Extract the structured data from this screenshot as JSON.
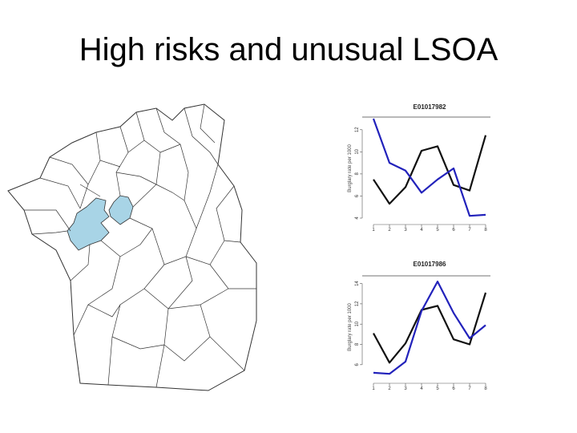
{
  "slide": {
    "title": "High risks and unusual LSOA"
  },
  "colors": {
    "highlight": "#a8d4e6",
    "boundary": "#333333",
    "series_black": "#111111",
    "series_blue": "#2222bb"
  },
  "chart_data": [
    {
      "type": "line",
      "title": "E01017982",
      "ylabel": "Burglary rate per 1000",
      "x": [
        1,
        2,
        3,
        4,
        5,
        6,
        7,
        8
      ],
      "xticks": [
        "1",
        "2",
        "3",
        "4",
        "5",
        "6",
        "7",
        "8"
      ],
      "yticks": [
        4,
        6,
        8,
        10,
        12
      ],
      "ylim": [
        4,
        13
      ],
      "series": [
        {
          "color": "#111111",
          "values": [
            7.5,
            5.3,
            6.8,
            10.1,
            10.5,
            7.0,
            6.5,
            11.5
          ]
        },
        {
          "color": "#2222bb",
          "values": [
            13.0,
            9.0,
            8.3,
            6.3,
            7.5,
            8.5,
            4.2,
            4.3
          ]
        }
      ]
    },
    {
      "type": "line",
      "title": "E01017986",
      "ylabel": "Burglary rate per 1000",
      "x": [
        1,
        2,
        3,
        4,
        5,
        6,
        7,
        8
      ],
      "xticks": [
        "1",
        "2",
        "3",
        "4",
        "5",
        "6",
        "7",
        "8"
      ],
      "yticks": [
        6,
        8,
        10,
        12,
        14
      ],
      "ylim": [
        4.8,
        14.6
      ],
      "series": [
        {
          "color": "#111111",
          "values": [
            9.1,
            6.2,
            8.1,
            11.4,
            11.8,
            8.5,
            8.0,
            13.1
          ]
        },
        {
          "color": "#2222bb",
          "values": [
            5.2,
            5.1,
            6.3,
            11.3,
            14.2,
            11.1,
            8.6,
            9.9
          ]
        }
      ]
    }
  ]
}
